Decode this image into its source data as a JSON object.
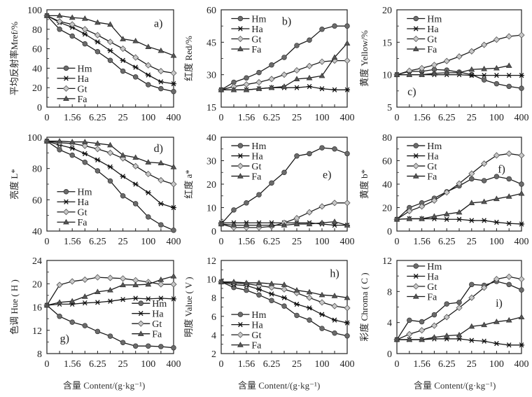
{
  "figure": {
    "x_axis_title": "含量 Content/(g·kg⁻¹)",
    "series_names": [
      "Hm",
      "Ha",
      "Gt",
      "Fa"
    ],
    "series_markers": {
      "Hm": "circle",
      "Ha": "asterisk",
      "Gt": "diamond",
      "Fa": "triangle"
    },
    "series_fill_colors": {
      "Hm": "#6b6b6b",
      "Ha": "#222222",
      "Gt": "#c8c8c8",
      "Fa": "#555555"
    },
    "line_color": "#1a1a1a"
  },
  "chart_data": [
    {
      "id": "a",
      "type": "line",
      "panel_label": "a)",
      "ylabel": "平均反射率Mref/%",
      "x": [
        "0",
        "0.78",
        "1.56",
        "3.13",
        "6.25",
        "12.5",
        "25",
        "50",
        "100",
        "200",
        "400"
      ],
      "xtick_labels": [
        "0",
        "1.56",
        "6.25",
        "25",
        "100",
        "400"
      ],
      "ylim": [
        0,
        100
      ],
      "yticks": [
        0,
        20,
        40,
        60,
        80,
        100
      ],
      "legend_position": "bottom-left",
      "series": [
        {
          "name": "Hm",
          "values": [
            94,
            80,
            73,
            65,
            57,
            48,
            37,
            31,
            23,
            19,
            16
          ]
        },
        {
          "name": "Ha",
          "values": [
            94,
            87,
            82,
            75,
            67,
            58,
            48,
            41,
            33,
            26,
            24
          ]
        },
        {
          "name": "Gt",
          "values": [
            94,
            88,
            85,
            80,
            74,
            67,
            60,
            51,
            43,
            37,
            35
          ]
        },
        {
          "name": "Fa",
          "values": [
            94,
            94,
            92,
            91,
            87,
            85,
            70,
            68,
            62,
            58,
            53
          ]
        }
      ]
    },
    {
      "id": "b",
      "type": "line",
      "panel_label": "b)",
      "ylabel": "红度 Red/%",
      "x": [
        "0",
        "0.78",
        "1.56",
        "3.13",
        "6.25",
        "12.5",
        "25",
        "50",
        "100",
        "200",
        "400"
      ],
      "xtick_labels": [
        "0",
        "1.56",
        "6.25",
        "25",
        "100",
        "400"
      ],
      "ylim": [
        15,
        60
      ],
      "yticks": [
        15,
        30,
        45,
        60
      ],
      "legend_position": "top-left",
      "series": [
        {
          "name": "Hm",
          "values": [
            23,
            26.5,
            28.5,
            31,
            34.5,
            38,
            43.5,
            46,
            51,
            52.5,
            52.5
          ]
        },
        {
          "name": "Ha",
          "values": [
            23,
            23,
            23,
            23.5,
            24,
            24,
            24,
            24.5,
            23.5,
            23,
            23
          ]
        },
        {
          "name": "Gt",
          "values": [
            23,
            24.5,
            25.5,
            26.5,
            28,
            30,
            32,
            34,
            36,
            36.5,
            36.5
          ]
        },
        {
          "name": "Fa",
          "values": [
            23,
            23,
            23,
            23.5,
            24,
            24.5,
            28,
            28.5,
            29.5,
            38,
            44.5
          ]
        }
      ]
    },
    {
      "id": "c",
      "type": "line",
      "panel_label": "c)",
      "ylabel": "黄度 Yellow/%",
      "x": [
        "0",
        "0.78",
        "1.56",
        "3.13",
        "6.25",
        "12.5",
        "25",
        "50",
        "100",
        "200",
        "400"
      ],
      "xtick_labels": [
        "0",
        "1.56",
        "6.25",
        "25",
        "100",
        "400"
      ],
      "ylim": [
        5,
        20
      ],
      "yticks": [
        5,
        10,
        15,
        20
      ],
      "legend_position": "top-left",
      "series": [
        {
          "name": "Hm",
          "values": [
            10,
            10.5,
            10.5,
            10.8,
            10.7,
            10.4,
            10,
            9.2,
            8.6,
            8.2,
            7.9
          ]
        },
        {
          "name": "Ha",
          "values": [
            10,
            10,
            10,
            10,
            10,
            10,
            9.9,
            9.9,
            9.9,
            9.9,
            9.9
          ]
        },
        {
          "name": "Gt",
          "values": [
            10,
            10.6,
            11,
            11.5,
            12.1,
            12.8,
            13.6,
            14.6,
            15.4,
            15.9,
            16.1
          ]
        },
        {
          "name": "Fa",
          "values": [
            10,
            10,
            10,
            10.2,
            10.3,
            10.3,
            10.8,
            10.9,
            11,
            11.4,
            null
          ]
        }
      ]
    },
    {
      "id": "d",
      "type": "line",
      "panel_label": "d)",
      "ylabel": "亮度 L*",
      "x": [
        "0",
        "0.78",
        "1.56",
        "3.13",
        "6.25",
        "12.5",
        "25",
        "50",
        "100",
        "200",
        "400"
      ],
      "xtick_labels": [
        "0",
        "1.56",
        "6.25",
        "25",
        "100",
        "400"
      ],
      "ylim": [
        40,
        100
      ],
      "yticks": [
        40,
        60,
        80,
        100
      ],
      "legend_position": "bottom-left",
      "series": [
        {
          "name": "Hm",
          "values": [
            97.5,
            92,
            88.5,
            84,
            78.5,
            72,
            62.5,
            57.5,
            49,
            44,
            40.5
          ]
        },
        {
          "name": "Ha",
          "values": [
            97.5,
            95,
            93,
            89.5,
            85.5,
            81,
            75,
            70,
            64.5,
            57.5,
            55
          ]
        },
        {
          "name": "Gt",
          "values": [
            97.5,
            96.5,
            96,
            94.5,
            92.5,
            90,
            86.5,
            81.5,
            76.5,
            72.5,
            70
          ]
        },
        {
          "name": "Fa",
          "values": [
            97.5,
            97.5,
            97,
            97,
            96,
            95,
            88.5,
            87,
            84,
            83.5,
            81
          ]
        }
      ]
    },
    {
      "id": "e",
      "type": "line",
      "panel_label": "e)",
      "ylabel": "红度 a*",
      "x": [
        "0",
        "0.78",
        "1.56",
        "3.13",
        "6.25",
        "12.5",
        "25",
        "50",
        "100",
        "200",
        "400"
      ],
      "xtick_labels": [
        "0",
        "1.56",
        "6.25",
        "25",
        "100",
        "400"
      ],
      "ylim": [
        0,
        40
      ],
      "yticks": [
        0,
        10,
        20,
        30,
        40
      ],
      "legend_position": "top-left",
      "series": [
        {
          "name": "Hm",
          "values": [
            3,
            9,
            12,
            15.5,
            20.5,
            25,
            32,
            33,
            35.5,
            35,
            33
          ]
        },
        {
          "name": "Ha",
          "values": [
            3.5,
            3.5,
            3.5,
            3.5,
            3.5,
            3.5,
            3.5,
            3.5,
            3,
            2.5,
            2.5
          ]
        },
        {
          "name": "Gt",
          "values": [
            3,
            1.5,
            1.5,
            1.5,
            2,
            3.5,
            5.5,
            8,
            10.5,
            12,
            12
          ]
        },
        {
          "name": "Fa",
          "values": [
            3,
            2.5,
            2.5,
            2.5,
            2.5,
            2.5,
            3,
            3,
            3.5,
            4,
            2.5
          ]
        }
      ]
    },
    {
      "id": "f",
      "type": "line",
      "panel_label": "f)",
      "ylabel": "黄度 b*",
      "x": [
        "0",
        "0.78",
        "1.56",
        "3.13",
        "6.25",
        "12.5",
        "25",
        "50",
        "100",
        "200",
        "400"
      ],
      "xtick_labels": [
        "0",
        "1.56",
        "6.25",
        "25",
        "100",
        "400"
      ],
      "ylim": [
        0,
        80
      ],
      "yticks": [
        0,
        20,
        40,
        60,
        80
      ],
      "legend_position": "top-left",
      "series": [
        {
          "name": "Hm",
          "values": [
            10,
            20,
            24,
            28,
            33.5,
            38.5,
            44.5,
            43,
            46.5,
            44.5,
            40
          ]
        },
        {
          "name": "Ha",
          "values": [
            10,
            10.5,
            10.5,
            10.5,
            10,
            10,
            9,
            9,
            7.5,
            6.5,
            6
          ]
        },
        {
          "name": "Gt",
          "values": [
            10,
            17,
            21,
            26,
            33,
            40.5,
            49,
            57.5,
            64.5,
            66,
            64.5
          ]
        },
        {
          "name": "Fa",
          "values": [
            10,
            10.5,
            10.5,
            12.5,
            14.5,
            16,
            24,
            25,
            27.5,
            29.5,
            32
          ]
        }
      ]
    },
    {
      "id": "g",
      "type": "line",
      "panel_label": "g)",
      "ylabel": "色调 Hue ( H )",
      "x": [
        "0",
        "0.78",
        "1.56",
        "3.13",
        "6.25",
        "12.5",
        "25",
        "50",
        "100",
        "200",
        "400"
      ],
      "xtick_labels": [
        "0",
        "1.56",
        "6.25",
        "25",
        "100",
        "400"
      ],
      "ylim": [
        8,
        24
      ],
      "yticks": [
        8,
        12,
        16,
        20,
        24
      ],
      "legend_position": "center-right",
      "series": [
        {
          "name": "Hm",
          "values": [
            16.3,
            14.4,
            13.4,
            12.8,
            11.8,
            11,
            9.9,
            9.3,
            9.3,
            9.2,
            9
          ]
        },
        {
          "name": "Ha",
          "values": [
            16.3,
            16.5,
            16.5,
            16.7,
            16.8,
            17,
            17.3,
            17.5,
            17.4,
            17.5,
            17.4
          ]
        },
        {
          "name": "Gt",
          "values": [
            16.3,
            19.8,
            20.4,
            20.7,
            21.1,
            21,
            20.9,
            20.6,
            20.3,
            19.9,
            19.9
          ]
        },
        {
          "name": "Fa",
          "values": [
            16.3,
            16.8,
            17,
            17.8,
            18.6,
            18.9,
            19.8,
            19.8,
            19.9,
            20.7,
            21.3
          ]
        }
      ]
    },
    {
      "id": "h",
      "type": "line",
      "panel_label": "h)",
      "ylabel": "明度 Value ( V )",
      "x": [
        "0",
        "0.78",
        "1.56",
        "3.13",
        "6.25",
        "12.5",
        "25",
        "50",
        "100",
        "200",
        "400"
      ],
      "xtick_labels": [
        "0",
        "1.56",
        "6.25",
        "25",
        "100",
        "400"
      ],
      "ylim": [
        2,
        12
      ],
      "yticks": [
        2,
        4,
        6,
        8,
        10,
        12
      ],
      "legend_position": "bottom-left",
      "series": [
        {
          "name": "Hm",
          "values": [
            9.7,
            9.1,
            8.8,
            8.3,
            7.7,
            7.1,
            6.1,
            5.6,
            4.7,
            4.2,
            3.9
          ]
        },
        {
          "name": "Ha",
          "values": [
            9.7,
            9.4,
            9.3,
            8.9,
            8.4,
            8,
            7.3,
            6.9,
            6.2,
            5.6,
            5.3
          ]
        },
        {
          "name": "Gt",
          "values": [
            9.7,
            9.6,
            9.5,
            9.3,
            9.1,
            8.9,
            8.5,
            8,
            7.5,
            7.1,
            6.9
          ]
        },
        {
          "name": "Fa",
          "values": [
            9.7,
            9.7,
            9.6,
            9.6,
            9.5,
            9.4,
            8.8,
            8.6,
            8.3,
            8.2,
            8
          ]
        }
      ]
    },
    {
      "id": "i",
      "type": "line",
      "panel_label": "i)",
      "ylabel": "彩度 Chroma ( C )",
      "x": [
        "0",
        "0.78",
        "1.56",
        "3.13",
        "6.25",
        "12.5",
        "25",
        "50",
        "100",
        "200",
        "400"
      ],
      "xtick_labels": [
        "0",
        "1.56",
        "6.25",
        "25",
        "100",
        "400"
      ],
      "ylim": [
        0,
        12
      ],
      "yticks": [
        0,
        4,
        8,
        12
      ],
      "legend_position": "top-left",
      "series": [
        {
          "name": "Hm",
          "values": [
            1.8,
            4.3,
            4.1,
            5,
            6.4,
            6.6,
            8.9,
            8.8,
            9.3,
            8.9,
            8.2
          ]
        },
        {
          "name": "Ha",
          "values": [
            1.8,
            1.8,
            1.8,
            1.9,
            1.9,
            1.9,
            1.7,
            1.6,
            1.3,
            1.1,
            1.1
          ]
        },
        {
          "name": "Gt",
          "values": [
            1.8,
            2.5,
            3,
            3.6,
            4.7,
            5.9,
            7.2,
            8.5,
            9.6,
            9.9,
            9.6
          ]
        },
        {
          "name": "Fa",
          "values": [
            1.8,
            1.8,
            1.8,
            2.1,
            2.3,
            2.4,
            3.5,
            3.7,
            4.1,
            4.3,
            4.7
          ]
        }
      ]
    }
  ]
}
